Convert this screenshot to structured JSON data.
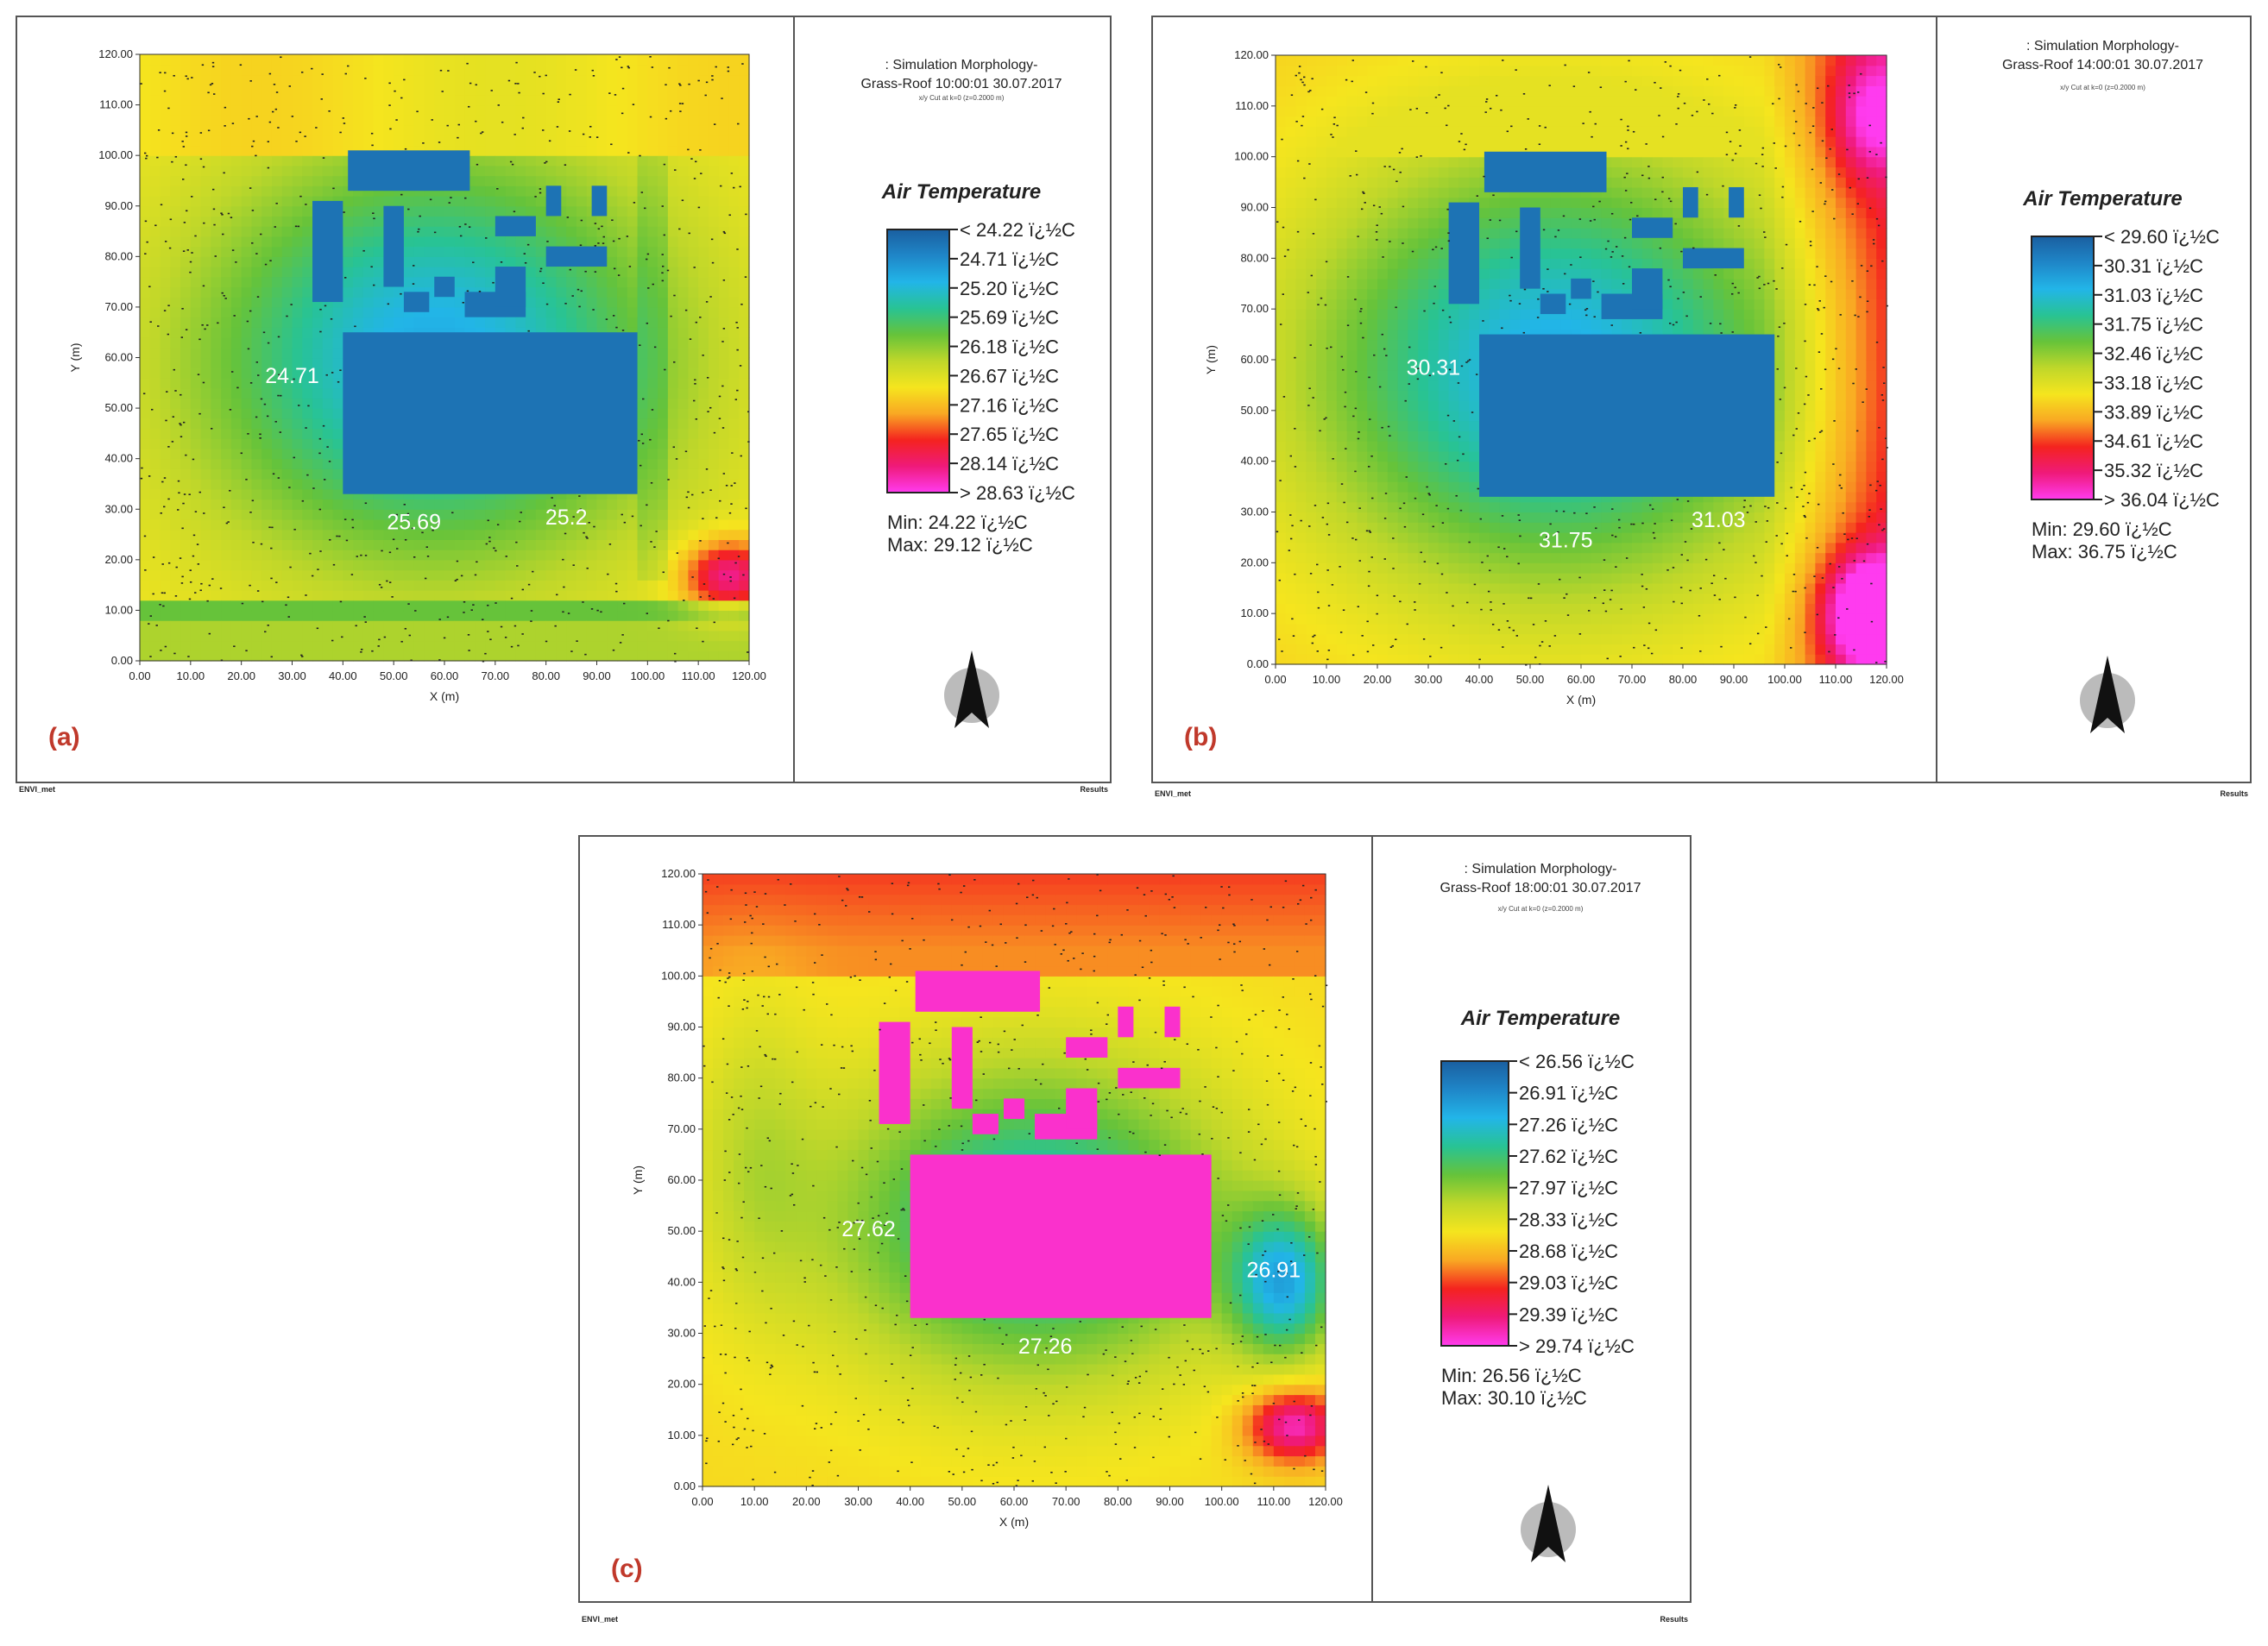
{
  "chart_data": [
    {
      "type": "heatmap",
      "panel_label": "(a)",
      "sim_title_line1": ": Simulation Morphology-",
      "sim_title_line2": "Grass-Roof 10:00:01 30.07.2017",
      "sim_subtitle": "x/y Cut at k=0 (z=0.2000 m)",
      "xlabel": "X (m)",
      "ylabel": "Y (m)",
      "xlim": [
        0,
        120
      ],
      "ylim": [
        0,
        120
      ],
      "x_ticks": [
        "0.00",
        "10.00",
        "20.00",
        "30.00",
        "40.00",
        "50.00",
        "60.00",
        "70.00",
        "80.00",
        "90.00",
        "100.00",
        "110.00",
        "120.00"
      ],
      "y_ticks": [
        "0.00",
        "10.00",
        "20.00",
        "30.00",
        "40.00",
        "50.00",
        "60.00",
        "70.00",
        "80.00",
        "90.00",
        "100.00",
        "110.00",
        "120.00"
      ],
      "legend_title": "Air Temperature",
      "legend_entries": [
        "< 24.22 ï¿½C",
        "24.71 ï¿½C",
        "25.20 ï¿½C",
        "25.69 ï¿½C",
        "26.18 ï¿½C",
        "26.67 ï¿½C",
        "27.16 ï¿½C",
        "27.65 ï¿½C",
        "28.14 ï¿½C",
        "> 28.63 ï¿½C"
      ],
      "min_text": "Min: 24.22 ï¿½C",
      "max_text": "Max: 29.12 ï¿½C",
      "annotations": [
        {
          "text": "24.71",
          "x": 30,
          "y": 55
        },
        {
          "text": "25.69",
          "x": 54,
          "y": 26
        },
        {
          "text": "25.2",
          "x": 84,
          "y": 27
        }
      ],
      "building_level": 0.05,
      "footer_left": "ENVI_met",
      "footer_right": "Results"
    },
    {
      "type": "heatmap",
      "panel_label": "(b)",
      "sim_title_line1": ": Simulation Morphology-",
      "sim_title_line2": "Grass-Roof 14:00:01 30.07.2017",
      "sim_subtitle": "x/y Cut at k=0 (z=0.2000 m)",
      "xlabel": "X (m)",
      "ylabel": "Y (m)",
      "xlim": [
        0,
        120
      ],
      "ylim": [
        0,
        120
      ],
      "x_ticks": [
        "0.00",
        "10.00",
        "20.00",
        "30.00",
        "40.00",
        "50.00",
        "60.00",
        "70.00",
        "80.00",
        "90.00",
        "100.00",
        "110.00",
        "120.00"
      ],
      "y_ticks": [
        "0.00",
        "10.00",
        "20.00",
        "30.00",
        "40.00",
        "50.00",
        "60.00",
        "70.00",
        "80.00",
        "90.00",
        "100.00",
        "110.00",
        "120.00"
      ],
      "legend_title": "Air Temperature",
      "legend_entries": [
        "< 29.60 ï¿½C",
        "30.31 ï¿½C",
        "31.03 ï¿½C",
        "31.75 ï¿½C",
        "32.46 ï¿½C",
        "33.18 ï¿½C",
        "33.89 ï¿½C",
        "34.61 ï¿½C",
        "35.32 ï¿½C",
        "> 36.04 ï¿½C"
      ],
      "min_text": "Min: 29.60 ï¿½C",
      "max_text": "Max: 36.75 ï¿½C",
      "annotations": [
        {
          "text": "30.31",
          "x": 31,
          "y": 57
        },
        {
          "text": "31.75",
          "x": 57,
          "y": 23
        },
        {
          "text": "31.03",
          "x": 87,
          "y": 27
        }
      ],
      "building_level": 0.05,
      "footer_left": "ENVI_met",
      "footer_right": "Results"
    },
    {
      "type": "heatmap",
      "panel_label": "(c)",
      "sim_title_line1": ": Simulation Morphology-",
      "sim_title_line2": "Grass-Roof 18:00:01 30.07.2017",
      "sim_subtitle": "x/y Cut at k=0 (z=0.2000 m)",
      "xlabel": "X (m)",
      "ylabel": "Y (m)",
      "xlim": [
        0,
        120
      ],
      "ylim": [
        0,
        120
      ],
      "x_ticks": [
        "0.00",
        "10.00",
        "20.00",
        "30.00",
        "40.00",
        "50.00",
        "60.00",
        "70.00",
        "80.00",
        "90.00",
        "100.00",
        "110.00",
        "120.00"
      ],
      "y_ticks": [
        "0.00",
        "10.00",
        "20.00",
        "30.00",
        "40.00",
        "50.00",
        "60.00",
        "70.00",
        "80.00",
        "90.00",
        "100.00",
        "110.00",
        "120.00"
      ],
      "legend_title": "Air Temperature",
      "legend_entries": [
        "< 26.56 ï¿½C",
        "26.91 ï¿½C",
        "27.26 ï¿½C",
        "27.62 ï¿½C",
        "27.97 ï¿½C",
        "28.33 ï¿½C",
        "28.68 ï¿½C",
        "29.03 ï¿½C",
        "29.39 ï¿½C",
        "> 29.74 ï¿½C"
      ],
      "min_text": "Min: 26.56 ï¿½C",
      "max_text": "Max: 30.10 ï¿½C",
      "annotations": [
        {
          "text": "27.62",
          "x": 32,
          "y": 49
        },
        {
          "text": "27.26",
          "x": 66,
          "y": 26
        },
        {
          "text": "26.91",
          "x": 110,
          "y": 41
        }
      ],
      "building_level": 0.97,
      "footer_left": "ENVI_met",
      "footer_right": "Results"
    }
  ],
  "colorbar_colors": [
    "#1a5fa0",
    "#1f86c8",
    "#22b5e8",
    "#28c394",
    "#66c33a",
    "#bfd72a",
    "#f5e51e",
    "#f9a823",
    "#f4231f",
    "#ef1a7a",
    "#ff3bef"
  ],
  "buildings": [
    [
      41,
      93,
      65,
      101
    ],
    [
      34,
      71,
      40,
      91
    ],
    [
      48,
      74,
      52,
      90
    ],
    [
      52,
      69,
      57,
      73
    ],
    [
      58,
      72,
      62,
      76
    ],
    [
      64,
      68,
      76,
      73
    ],
    [
      70,
      70,
      76,
      78
    ],
    [
      70,
      84,
      78,
      88
    ],
    [
      80,
      88,
      83,
      94
    ],
    [
      89,
      88,
      92,
      94
    ],
    [
      80,
      78,
      92,
      82
    ],
    [
      40,
      33,
      98,
      65
    ]
  ]
}
